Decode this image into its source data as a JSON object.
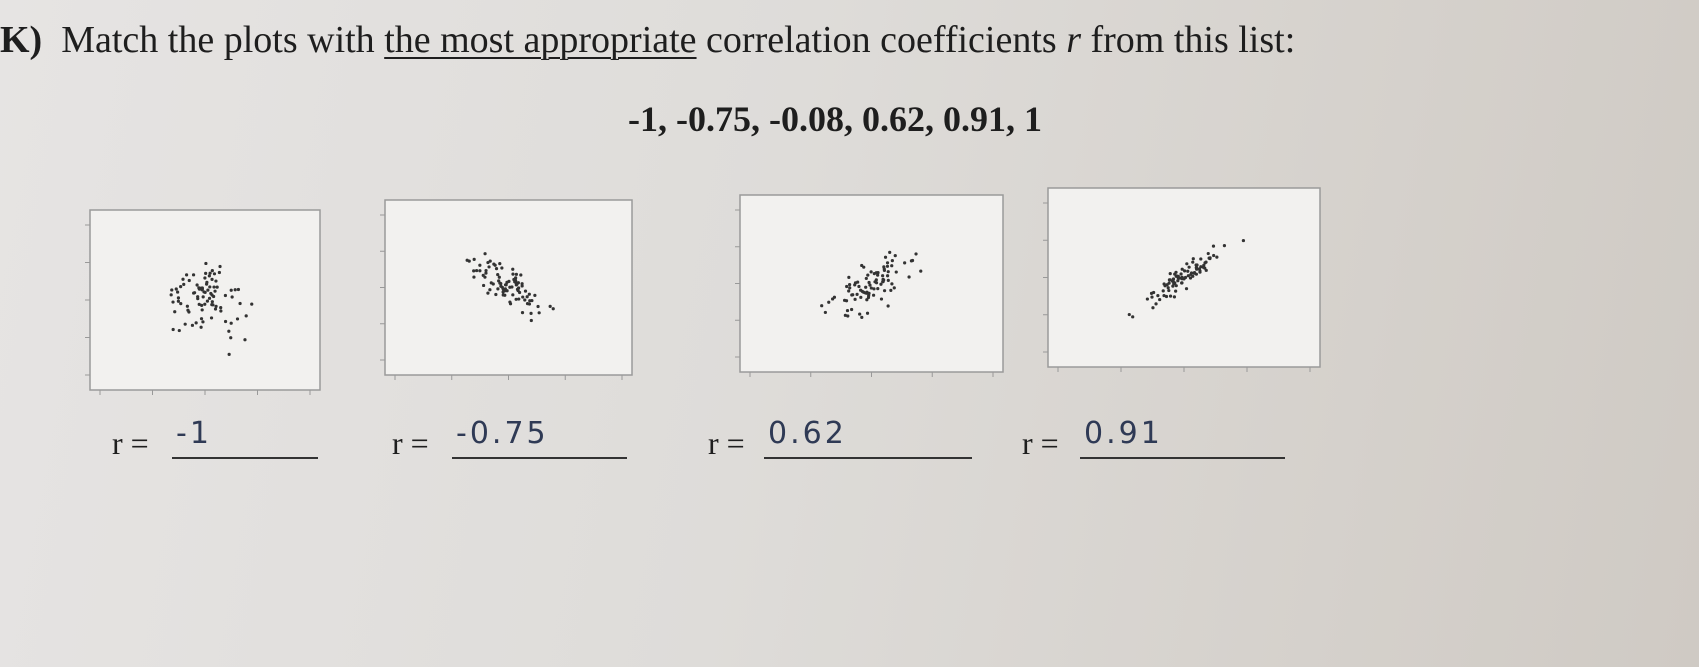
{
  "question": {
    "label": "K)",
    "text_before": "Match the plots with",
    "emphasis": "the most appropriate",
    "text_after": "correlation coefficients",
    "variable": "r",
    "text_end": "from this list:"
  },
  "coefficient_list": "-1, -0.75, -0.08, 0.62, 0.91, 1",
  "answers": [
    {
      "label": "r =",
      "answer": "-1"
    },
    {
      "label": "r =",
      "answer": "-0.75"
    },
    {
      "label": "r =",
      "answer": "0.62"
    },
    {
      "label": "r =",
      "answer": "0.91"
    }
  ]
}
